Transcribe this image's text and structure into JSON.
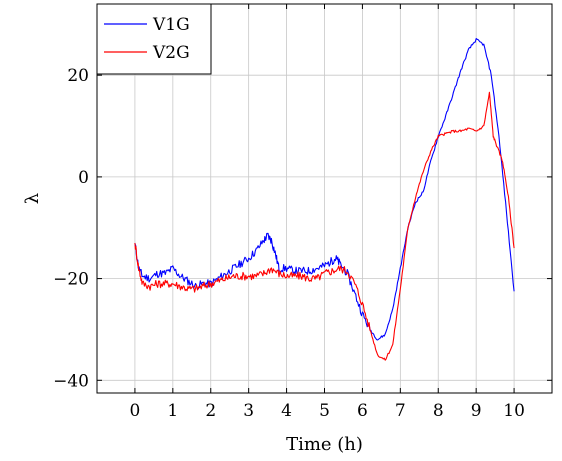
{
  "chart_data": {
    "type": "line",
    "xlabel": "Time (h)",
    "ylabel": "λ",
    "xlim": [
      -1,
      11
    ],
    "ylim": [
      -42.5,
      34
    ],
    "xticks": [
      0,
      1,
      2,
      3,
      4,
      5,
      6,
      7,
      8,
      9,
      10
    ],
    "yticks": [
      -40,
      -20,
      0,
      20
    ],
    "grid": true,
    "legend_position": "top-left",
    "series": [
      {
        "name": "V1G",
        "color": "#0000ff",
        "x": [
          0,
          0.1,
          0.2,
          0.4,
          0.6,
          0.8,
          1.0,
          1.2,
          1.4,
          1.6,
          1.8,
          2.0,
          2.2,
          2.4,
          2.6,
          2.8,
          3.0,
          3.2,
          3.4,
          3.5,
          3.6,
          3.7,
          3.8,
          4.0,
          4.2,
          4.4,
          4.6,
          4.8,
          5.0,
          5.2,
          5.3,
          5.4,
          5.6,
          5.8,
          6.0,
          6.2,
          6.4,
          6.6,
          6.8,
          7.0,
          7.2,
          7.4,
          7.6,
          7.8,
          8.0,
          8.2,
          8.4,
          8.6,
          8.8,
          9.0,
          9.2,
          9.4,
          9.6,
          9.8,
          10.0
        ],
        "y": [
          -13,
          -18,
          -19.5,
          -20,
          -19,
          -19,
          -18,
          -19.5,
          -20.5,
          -21.5,
          -21,
          -21,
          -20,
          -19,
          -18,
          -17,
          -16,
          -14.5,
          -12.5,
          -11.5,
          -12.5,
          -15,
          -18,
          -18,
          -18.5,
          -18.5,
          -18.5,
          -18,
          -17.5,
          -16.5,
          -16,
          -17,
          -19,
          -23,
          -27,
          -30,
          -32,
          -31,
          -26,
          -18,
          -10,
          -5,
          -3,
          3,
          8,
          12,
          16.5,
          21,
          25,
          27,
          26,
          20,
          8,
          -7,
          -22.5
        ]
      },
      {
        "name": "V2G",
        "color": "#ff0000",
        "x": [
          0,
          0.1,
          0.2,
          0.4,
          0.6,
          0.8,
          1.0,
          1.2,
          1.4,
          1.6,
          1.8,
          2.0,
          2.2,
          2.4,
          2.6,
          2.8,
          3.0,
          3.2,
          3.4,
          3.6,
          3.8,
          4.0,
          4.2,
          4.4,
          4.6,
          4.8,
          5.0,
          5.2,
          5.4,
          5.6,
          5.8,
          6.0,
          6.2,
          6.4,
          6.6,
          6.8,
          7.0,
          7.2,
          7.4,
          7.6,
          7.8,
          8.0,
          8.2,
          8.4,
          8.6,
          8.8,
          9.0,
          9.2,
          9.35,
          9.45,
          9.55,
          9.7,
          9.85,
          10.0
        ],
        "y": [
          -13,
          -18,
          -21,
          -21.5,
          -21,
          -21,
          -21,
          -21.5,
          -22,
          -22,
          -21.5,
          -21,
          -20.5,
          -20,
          -19.5,
          -19.5,
          -19.5,
          -19.5,
          -19,
          -18,
          -19,
          -19.5,
          -19.5,
          -19.5,
          -20,
          -20,
          -19,
          -18.5,
          -18,
          -18.5,
          -21,
          -25,
          -30,
          -35,
          -36,
          -33,
          -22,
          -10,
          -4,
          1,
          5,
          8,
          8.5,
          9,
          9,
          9.5,
          9,
          10,
          16.5,
          8,
          6,
          3,
          -4,
          -14
        ]
      }
    ]
  }
}
